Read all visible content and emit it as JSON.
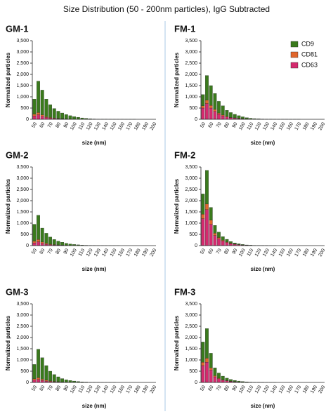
{
  "title": "Size Distribution (50 - 200nm particles), IgG Subtracted",
  "chart_data": [
    {
      "type": "bar",
      "stacked": true,
      "title": "GM-1",
      "xlabel": "size (nm)",
      "ylabel": "Normalized particles",
      "categories": [
        "50",
        null,
        "60",
        null,
        "70",
        null,
        "80",
        null,
        "90",
        null,
        "100",
        null,
        "110",
        null,
        "120",
        null,
        "130",
        null,
        "140",
        null,
        "150",
        null,
        "160",
        null,
        "170",
        null,
        "180",
        null,
        "190",
        null,
        "200"
      ],
      "ylim": [
        0,
        3500
      ],
      "yticks": [
        0,
        500,
        {
          "value": 1000,
          "label": "1,000"
        },
        {
          "value": 1500,
          "label": "1,500"
        },
        {
          "value": 2000,
          "label": "2,000"
        },
        {
          "value": 2500,
          "label": "2,500"
        },
        {
          "value": 3000,
          "label": "3,000"
        },
        {
          "value": 3500,
          "label": "3,500"
        }
      ],
      "series": [
        {
          "name": "CD9",
          "color": "#3a7a1c",
          "values": [
            670,
            1400,
            1100,
            780,
            570,
            425,
            320,
            252,
            190,
            146,
            110,
            83,
            55,
            37,
            23,
            14,
            10,
            8,
            5,
            4,
            3,
            2,
            2,
            1,
            1,
            1,
            0,
            0,
            0,
            0,
            0
          ]
        },
        {
          "name": "CD81",
          "color": "#e0662c",
          "values": [
            80,
            100,
            70,
            40,
            30,
            20,
            15,
            10,
            8,
            6,
            4,
            3,
            2,
            1,
            1,
            0,
            0,
            0,
            0,
            0,
            0,
            0,
            0,
            0,
            0,
            0,
            0,
            0,
            0,
            0,
            0
          ]
        },
        {
          "name": "CD63",
          "color": "#d42a6e",
          "values": [
            150,
            200,
            130,
            80,
            50,
            35,
            25,
            18,
            12,
            8,
            6,
            4,
            3,
            2,
            1,
            1,
            0,
            0,
            0,
            0,
            0,
            0,
            0,
            0,
            0,
            0,
            0,
            0,
            0,
            0,
            0
          ]
        }
      ]
    },
    {
      "type": "bar",
      "stacked": true,
      "title": "FM-1",
      "xlabel": "size (nm)",
      "ylabel": "Normalized particles",
      "legend": "upper right",
      "categories": [
        "50",
        null,
        "60",
        null,
        "70",
        null,
        "80",
        null,
        "90",
        null,
        "100",
        null,
        "110",
        null,
        "120",
        null,
        "130",
        null,
        "140",
        null,
        "150",
        null,
        "160",
        null,
        "170",
        null,
        "180",
        null,
        "190",
        null,
        "200"
      ],
      "ylim": [
        0,
        3500
      ],
      "yticks": [
        0,
        500,
        {
          "value": 1000,
          "label": "1,000"
        },
        {
          "value": 1500,
          "label": "1,500"
        },
        {
          "value": 2000,
          "label": "2,000"
        },
        {
          "value": 2500,
          "label": "2,500"
        },
        {
          "value": 3000,
          "label": "3,000"
        },
        {
          "value": 3500,
          "label": "3,500"
        }
      ],
      "series": [
        {
          "name": "CD9",
          "color": "#3a7a1c",
          "values": [
            500,
            1100,
            880,
            710,
            520,
            410,
            270,
            210,
            155,
            115,
            79,
            51,
            32,
            22,
            15,
            10,
            7,
            5,
            4,
            3,
            2,
            2,
            1,
            1,
            1,
            0,
            0,
            0,
            0,
            0,
            0
          ]
        },
        {
          "name": "CD81",
          "color": "#e0662c",
          "values": [
            100,
            150,
            120,
            90,
            60,
            40,
            30,
            20,
            15,
            10,
            6,
            4,
            3,
            2,
            1,
            1,
            0,
            0,
            0,
            0,
            0,
            0,
            0,
            0,
            0,
            0,
            0,
            0,
            0,
            0,
            0
          ]
        },
        {
          "name": "CD63",
          "color": "#d42a6e",
          "values": [
            500,
            700,
            500,
            350,
            220,
            150,
            100,
            70,
            50,
            35,
            25,
            15,
            10,
            6,
            4,
            2,
            1,
            0,
            0,
            0,
            0,
            0,
            0,
            0,
            0,
            0,
            0,
            0,
            0,
            0,
            0
          ]
        }
      ]
    },
    {
      "type": "bar",
      "stacked": true,
      "title": "GM-2",
      "xlabel": "size (nm)",
      "ylabel": "Normalized particles",
      "categories": [
        "50",
        null,
        "60",
        null,
        "70",
        null,
        "80",
        null,
        "90",
        null,
        "100",
        null,
        "110",
        null,
        "120",
        null,
        "130",
        null,
        "140",
        null,
        "150",
        null,
        "160",
        null,
        "170",
        null,
        "180",
        null,
        "190",
        null,
        "200"
      ],
      "ylim": [
        0,
        3500
      ],
      "yticks": [
        0,
        500,
        {
          "value": 1000,
          "label": "1,000"
        },
        {
          "value": 1500,
          "label": "1,500"
        },
        {
          "value": 2000,
          "label": "2,000"
        },
        {
          "value": 2500,
          "label": "2,500"
        },
        {
          "value": 3000,
          "label": "3,000"
        },
        {
          "value": 3500,
          "label": "3,500"
        }
      ],
      "series": [
        {
          "name": "CD9",
          "color": "#3a7a1c",
          "values": [
            750,
            1080,
            620,
            450,
            315,
            224,
            168,
            127,
            84,
            60,
            42,
            30,
            20,
            12,
            8,
            5,
            4,
            3,
            2,
            1,
            1,
            1,
            0,
            0,
            0,
            0,
            0,
            0,
            0,
            0,
            0
          ]
        },
        {
          "name": "CD81",
          "color": "#e0662c",
          "values": [
            80,
            100,
            60,
            40,
            25,
            18,
            12,
            9,
            6,
            4,
            3,
            2,
            1,
            1,
            0,
            0,
            0,
            0,
            0,
            0,
            0,
            0,
            0,
            0,
            0,
            0,
            0,
            0,
            0,
            0,
            0
          ]
        },
        {
          "name": "CD63",
          "color": "#d42a6e",
          "values": [
            120,
            170,
            100,
            60,
            40,
            28,
            20,
            14,
            10,
            7,
            5,
            3,
            2,
            1,
            1,
            0,
            0,
            0,
            0,
            0,
            0,
            0,
            0,
            0,
            0,
            0,
            0,
            0,
            0,
            0,
            0
          ]
        }
      ]
    },
    {
      "type": "bar",
      "stacked": true,
      "title": "FM-2",
      "xlabel": "size (nm)",
      "ylabel": "Normalized particles",
      "categories": [
        "50",
        null,
        "60",
        null,
        "70",
        null,
        "80",
        null,
        "90",
        null,
        "100",
        null,
        "110",
        null,
        "120",
        null,
        "130",
        null,
        "140",
        null,
        "150",
        null,
        "160",
        null,
        "170",
        null,
        "180",
        null,
        "190",
        null,
        "200"
      ],
      "ylim": [
        0,
        3500
      ],
      "yticks": [
        0,
        500,
        {
          "value": 1000,
          "label": "1,000"
        },
        {
          "value": 1500,
          "label": "1,500"
        },
        {
          "value": 2000,
          "label": "2,000"
        },
        {
          "value": 2500,
          "label": "2,500"
        },
        {
          "value": 3000,
          "label": "3,000"
        },
        {
          "value": 3500,
          "label": "3,500"
        }
      ],
      "series": [
        {
          "name": "CD9",
          "color": "#3a7a1c",
          "values": [
            900,
            1500,
            570,
            350,
            240,
            160,
            115,
            72,
            48,
            32,
            20,
            12,
            8,
            5,
            3,
            2,
            1,
            1,
            1,
            0,
            0,
            0,
            0,
            0,
            0,
            0,
            0,
            0,
            0,
            0,
            0
          ]
        },
        {
          "name": "CD81",
          "color": "#e0662c",
          "values": [
            200,
            250,
            180,
            100,
            60,
            40,
            25,
            18,
            12,
            8,
            5,
            3,
            2,
            1,
            1,
            0,
            0,
            0,
            0,
            0,
            0,
            0,
            0,
            0,
            0,
            0,
            0,
            0,
            0,
            0,
            0
          ]
        },
        {
          "name": "CD63",
          "color": "#d42a6e",
          "values": [
            1200,
            1600,
            950,
            450,
            300,
            200,
            140,
            90,
            60,
            40,
            25,
            15,
            10,
            6,
            4,
            2,
            1,
            0,
            0,
            0,
            0,
            0,
            0,
            0,
            0,
            0,
            0,
            0,
            0,
            0,
            0
          ]
        }
      ]
    },
    {
      "type": "bar",
      "stacked": true,
      "title": "GM-3",
      "xlabel": "size (nm)",
      "ylabel": "Normalized particles",
      "categories": [
        "50",
        null,
        "60",
        null,
        "70",
        null,
        "80",
        null,
        "90",
        null,
        "100",
        null,
        "110",
        null,
        "120",
        null,
        "130",
        null,
        "140",
        null,
        "150",
        null,
        "160",
        null,
        "170",
        null,
        "180",
        null,
        "190",
        null,
        "200"
      ],
      "ylim": [
        0,
        3500
      ],
      "yticks": [
        0,
        500,
        {
          "value": 1000,
          "label": "1,000"
        },
        {
          "value": 1500,
          "label": "1,500"
        },
        {
          "value": 2000,
          "label": "2,000"
        },
        {
          "value": 2500,
          "label": "2,500"
        },
        {
          "value": 3000,
          "label": "3,000"
        },
        {
          "value": 3500,
          "label": "3,500"
        }
      ],
      "series": [
        {
          "name": "CD9",
          "color": "#3a7a1c",
          "values": [
            640,
            1270,
            950,
            650,
            435,
            304,
            218,
            147,
            104,
            74,
            52,
            35,
            22,
            14,
            9,
            6,
            4,
            3,
            2,
            1,
            1,
            0,
            0,
            0,
            0,
            0,
            0,
            0,
            0,
            0,
            0
          ]
        },
        {
          "name": "CD81",
          "color": "#e0662c",
          "values": [
            60,
            80,
            60,
            40,
            25,
            18,
            12,
            9,
            6,
            4,
            3,
            2,
            1,
            1,
            0,
            0,
            0,
            0,
            0,
            0,
            0,
            0,
            0,
            0,
            0,
            0,
            0,
            0,
            0,
            0,
            0
          ]
        },
        {
          "name": "CD63",
          "color": "#d42a6e",
          "values": [
            100,
            130,
            90,
            60,
            40,
            28,
            20,
            14,
            10,
            7,
            5,
            3,
            2,
            1,
            0,
            0,
            0,
            0,
            0,
            0,
            0,
            0,
            0,
            0,
            0,
            0,
            0,
            0,
            0,
            0,
            0
          ]
        }
      ]
    },
    {
      "type": "bar",
      "stacked": true,
      "title": "FM-3",
      "xlabel": "size (nm)",
      "ylabel": "Normalized particles",
      "categories": [
        "50",
        null,
        "60",
        null,
        "70",
        null,
        "80",
        null,
        "90",
        null,
        "100",
        null,
        "110",
        null,
        "120",
        null,
        "130",
        null,
        "140",
        null,
        "150",
        null,
        "160",
        null,
        "170",
        null,
        "180",
        null,
        "190",
        null,
        "200"
      ],
      "ylim": [
        0,
        3500
      ],
      "yticks": [
        0,
        500,
        {
          "value": 1000,
          "label": "1,000"
        },
        {
          "value": 1500,
          "label": "1,500"
        },
        {
          "value": 2000,
          "label": "2,000"
        },
        {
          "value": 2500,
          "label": "2,500"
        },
        {
          "value": 3000,
          "label": "3,000"
        },
        {
          "value": 3500,
          "label": "3,500"
        }
      ],
      "series": [
        {
          "name": "CD9",
          "color": "#3a7a1c",
          "values": [
            900,
            1320,
            650,
            350,
            230,
            160,
            106,
            76,
            54,
            36,
            25,
            15,
            9,
            6,
            4,
            2,
            2,
            1,
            1,
            0,
            0,
            0,
            0,
            0,
            0,
            0,
            0,
            0,
            0,
            0,
            0
          ]
        },
        {
          "name": "CD81",
          "color": "#e0662c",
          "values": [
            150,
            180,
            100,
            50,
            30,
            20,
            14,
            9,
            6,
            4,
            3,
            2,
            1,
            1,
            0,
            0,
            0,
            0,
            0,
            0,
            0,
            0,
            0,
            0,
            0,
            0,
            0,
            0,
            0,
            0,
            0
          ]
        },
        {
          "name": "CD63",
          "color": "#d42a6e",
          "values": [
            750,
            900,
            550,
            250,
            160,
            100,
            70,
            45,
            30,
            20,
            12,
            8,
            5,
            3,
            2,
            1,
            0,
            0,
            0,
            0,
            0,
            0,
            0,
            0,
            0,
            0,
            0,
            0,
            0,
            0,
            0
          ]
        }
      ]
    }
  ]
}
